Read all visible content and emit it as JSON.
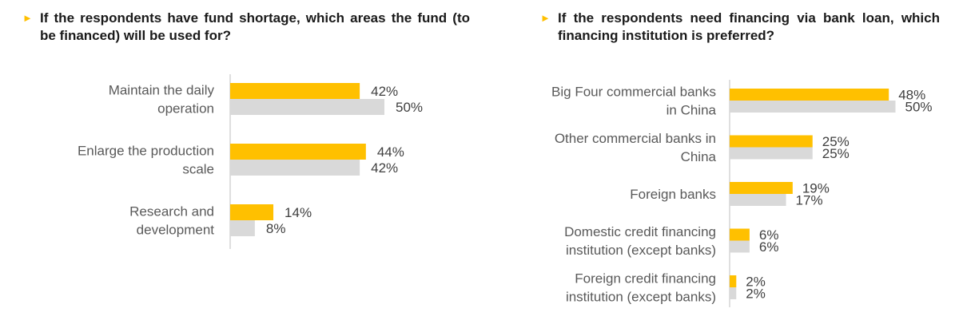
{
  "colors": {
    "series_a": "#ffc000",
    "series_b": "#d9d9d9",
    "axis": "#bfbfbf",
    "bullet": "#ffc000"
  },
  "bullet_icon": "►",
  "chart_data": [
    {
      "type": "bar",
      "orientation": "horizontal",
      "title": "If the respondents have fund shortage, which areas the fund (to be financed) will be used for?",
      "categories": [
        [
          "Maintain the daily",
          "operation"
        ],
        [
          "Enlarge the production",
          "scale"
        ],
        [
          "Research and",
          "development"
        ]
      ],
      "series": [
        {
          "color": "#ffc000",
          "values": [
            42,
            44,
            14
          ]
        },
        {
          "color": "#d9d9d9",
          "values": [
            50,
            42,
            8
          ]
        }
      ],
      "value_suffix": "%",
      "xlim": [
        0,
        60
      ],
      "grid": false,
      "legend": "none"
    },
    {
      "type": "bar",
      "orientation": "horizontal",
      "title": "If the respondents need financing via bank loan, which financing institution is preferred?",
      "categories": [
        [
          "Big Four commercial banks",
          "in China"
        ],
        [
          "Other commercial banks in",
          "China"
        ],
        [
          "Foreign banks"
        ],
        [
          "Domestic credit financing",
          "institution (except banks)"
        ],
        [
          "Foreign credit financing",
          "institution (except banks)"
        ]
      ],
      "series": [
        {
          "color": "#ffc000",
          "values": [
            48,
            25,
            19,
            6,
            2
          ]
        },
        {
          "color": "#d9d9d9",
          "values": [
            50,
            25,
            17,
            6,
            2
          ]
        }
      ],
      "value_suffix": "%",
      "xlim": [
        0,
        50
      ],
      "grid": false,
      "legend": "none"
    }
  ]
}
